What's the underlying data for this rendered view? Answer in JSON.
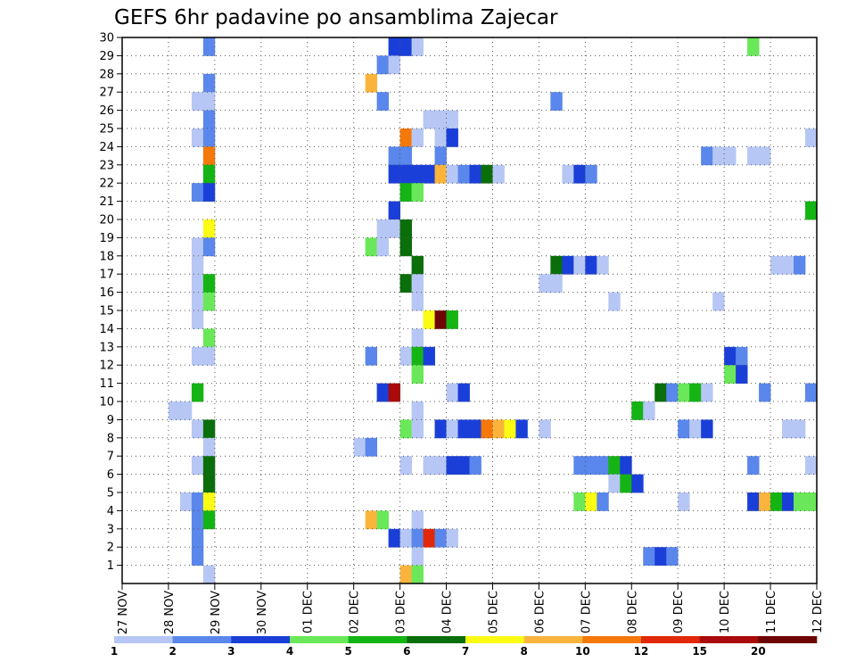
{
  "chart_data": {
    "type": "heatmap",
    "title": "GEFS 6hr padavine po ansamblima Zajecar",
    "xlabel": "",
    "ylabel": "",
    "x_tick_labels": [
      "27 NOV",
      "28 NOV",
      "29 NOV",
      "30 NOV",
      "01 DEC",
      "02 DEC",
      "03 DEC",
      "04 DEC",
      "05 DEC",
      "06 DEC",
      "07 DEC",
      "08 DEC",
      "09 DEC",
      "10 DEC",
      "11 DEC",
      "12 DEC"
    ],
    "x_unit": "6-hour step (4 steps per day)",
    "x_range": [
      0,
      60
    ],
    "y_tick_labels": [
      "1",
      "2",
      "3",
      "4",
      "5",
      "6",
      "7",
      "8",
      "9",
      "10",
      "11",
      "12",
      "13",
      "14",
      "15",
      "16",
      "17",
      "18",
      "19",
      "20",
      "21",
      "22",
      "23",
      "24",
      "25",
      "26",
      "27",
      "28",
      "29",
      "30"
    ],
    "y_range": [
      0,
      30
    ],
    "grid": true,
    "colorbar": {
      "labels": [
        "1",
        "2",
        "3",
        "4",
        "5",
        "6",
        "7",
        "8",
        "10",
        "12",
        "15",
        "20"
      ],
      "colors": [
        "#b7c7f5",
        "#5a87ec",
        "#1a3fd9",
        "#6ae85a",
        "#14b414",
        "#0a6e0a",
        "#fbfb14",
        "#fab43c",
        "#f5780a",
        "#e1280a",
        "#aa0a0a",
        "#6e0505"
      ]
    },
    "cells": [
      [
        7,
        30,
        2
      ],
      [
        23,
        30,
        3
      ],
      [
        24,
        30,
        3
      ],
      [
        25,
        30,
        1
      ],
      [
        54,
        30,
        4
      ],
      [
        22,
        29,
        2
      ],
      [
        23,
        29,
        1
      ],
      [
        7,
        28,
        2
      ],
      [
        21,
        28,
        8
      ],
      [
        6,
        27,
        1
      ],
      [
        7,
        27,
        1
      ],
      [
        22,
        27,
        2
      ],
      [
        37,
        27,
        2
      ],
      [
        7,
        26,
        2
      ],
      [
        26,
        26,
        1
      ],
      [
        27,
        26,
        1
      ],
      [
        28,
        26,
        1
      ],
      [
        6,
        25,
        1
      ],
      [
        7,
        25,
        2
      ],
      [
        24,
        25,
        9
      ],
      [
        25,
        25,
        1
      ],
      [
        27,
        25,
        1
      ],
      [
        28,
        25,
        3
      ],
      [
        59,
        25,
        1
      ],
      [
        7,
        24,
        9
      ],
      [
        23,
        24,
        2
      ],
      [
        24,
        24,
        2
      ],
      [
        27,
        24,
        2
      ],
      [
        50,
        24,
        2
      ],
      [
        51,
        24,
        1
      ],
      [
        52,
        24,
        1
      ],
      [
        54,
        24,
        1
      ],
      [
        55,
        24,
        1
      ],
      [
        7,
        23,
        5
      ],
      [
        23,
        23,
        3
      ],
      [
        24,
        23,
        3
      ],
      [
        25,
        23,
        3
      ],
      [
        26,
        23,
        3
      ],
      [
        27,
        23,
        8
      ],
      [
        28,
        23,
        1
      ],
      [
        29,
        23,
        2
      ],
      [
        30,
        23,
        3
      ],
      [
        31,
        23,
        6
      ],
      [
        32,
        23,
        1
      ],
      [
        38,
        23,
        1
      ],
      [
        39,
        23,
        3
      ],
      [
        40,
        23,
        2
      ],
      [
        6,
        22,
        2
      ],
      [
        7,
        22,
        3
      ],
      [
        24,
        22,
        5
      ],
      [
        25,
        22,
        4
      ],
      [
        23,
        21,
        3
      ],
      [
        59,
        21,
        5
      ],
      [
        7,
        20,
        7
      ],
      [
        22,
        20,
        1
      ],
      [
        23,
        20,
        1
      ],
      [
        24,
        20,
        6
      ],
      [
        6,
        19,
        1
      ],
      [
        7,
        19,
        2
      ],
      [
        21,
        19,
        4
      ],
      [
        22,
        19,
        1
      ],
      [
        24,
        19,
        6
      ],
      [
        6,
        18,
        1
      ],
      [
        25,
        18,
        6
      ],
      [
        37,
        18,
        6
      ],
      [
        38,
        18,
        3
      ],
      [
        39,
        18,
        1
      ],
      [
        40,
        18,
        3
      ],
      [
        41,
        18,
        1
      ],
      [
        56,
        18,
        1
      ],
      [
        57,
        18,
        1
      ],
      [
        58,
        18,
        2
      ],
      [
        6,
        17,
        1
      ],
      [
        7,
        17,
        5
      ],
      [
        24,
        17,
        6
      ],
      [
        25,
        17,
        1
      ],
      [
        36,
        17,
        1
      ],
      [
        37,
        17,
        1
      ],
      [
        6,
        16,
        1
      ],
      [
        7,
        16,
        4
      ],
      [
        25,
        16,
        1
      ],
      [
        42,
        16,
        1
      ],
      [
        51,
        16,
        1
      ],
      [
        6,
        15,
        1
      ],
      [
        26,
        15,
        7
      ],
      [
        27,
        15,
        12
      ],
      [
        28,
        15,
        5
      ],
      [
        7,
        14,
        4
      ],
      [
        25,
        14,
        1
      ],
      [
        6,
        13,
        1
      ],
      [
        7,
        13,
        1
      ],
      [
        21,
        13,
        2
      ],
      [
        24,
        13,
        1
      ],
      [
        25,
        13,
        5
      ],
      [
        26,
        13,
        3
      ],
      [
        52,
        13,
        3
      ],
      [
        53,
        13,
        2
      ],
      [
        25,
        12,
        4
      ],
      [
        52,
        12,
        4
      ],
      [
        53,
        12,
        3
      ],
      [
        6,
        11,
        5
      ],
      [
        22,
        11,
        3
      ],
      [
        23,
        11,
        11
      ],
      [
        28,
        11,
        1
      ],
      [
        29,
        11,
        3
      ],
      [
        46,
        11,
        6
      ],
      [
        47,
        11,
        2
      ],
      [
        48,
        11,
        4
      ],
      [
        49,
        11,
        5
      ],
      [
        50,
        11,
        1
      ],
      [
        55,
        11,
        2
      ],
      [
        59,
        11,
        2
      ],
      [
        4,
        10,
        1
      ],
      [
        5,
        10,
        1
      ],
      [
        25,
        10,
        1
      ],
      [
        44,
        10,
        5
      ],
      [
        45,
        10,
        1
      ],
      [
        6,
        9,
        1
      ],
      [
        7,
        9,
        6
      ],
      [
        24,
        9,
        4
      ],
      [
        25,
        9,
        1
      ],
      [
        27,
        9,
        3
      ],
      [
        28,
        9,
        1
      ],
      [
        29,
        9,
        3
      ],
      [
        30,
        9,
        3
      ],
      [
        31,
        9,
        9
      ],
      [
        32,
        9,
        8
      ],
      [
        33,
        9,
        7
      ],
      [
        34,
        9,
        3
      ],
      [
        36,
        9,
        1
      ],
      [
        48,
        9,
        2
      ],
      [
        49,
        9,
        1
      ],
      [
        50,
        9,
        3
      ],
      [
        57,
        9,
        1
      ],
      [
        58,
        9,
        1
      ],
      [
        7,
        8,
        1
      ],
      [
        20,
        8,
        1
      ],
      [
        21,
        8,
        2
      ],
      [
        6,
        7,
        1
      ],
      [
        7,
        7,
        6
      ],
      [
        24,
        7,
        1
      ],
      [
        26,
        7,
        1
      ],
      [
        27,
        7,
        1
      ],
      [
        28,
        7,
        3
      ],
      [
        29,
        7,
        3
      ],
      [
        30,
        7,
        2
      ],
      [
        39,
        7,
        2
      ],
      [
        40,
        7,
        2
      ],
      [
        41,
        7,
        2
      ],
      [
        42,
        7,
        5
      ],
      [
        43,
        7,
        3
      ],
      [
        54,
        7,
        2
      ],
      [
        59,
        7,
        1
      ],
      [
        7,
        6,
        6
      ],
      [
        42,
        6,
        1
      ],
      [
        43,
        6,
        5
      ],
      [
        44,
        6,
        3
      ],
      [
        5,
        5,
        1
      ],
      [
        6,
        5,
        2
      ],
      [
        7,
        5,
        7
      ],
      [
        39,
        5,
        4
      ],
      [
        40,
        5,
        7
      ],
      [
        41,
        5,
        2
      ],
      [
        48,
        5,
        1
      ],
      [
        54,
        5,
        3
      ],
      [
        55,
        5,
        8
      ],
      [
        56,
        5,
        5
      ],
      [
        57,
        5,
        3
      ],
      [
        58,
        5,
        4
      ],
      [
        59,
        5,
        4
      ],
      [
        6,
        4,
        2
      ],
      [
        7,
        4,
        5
      ],
      [
        21,
        4,
        8
      ],
      [
        22,
        4,
        4
      ],
      [
        25,
        4,
        1
      ],
      [
        6,
        3,
        2
      ],
      [
        23,
        3,
        3
      ],
      [
        24,
        3,
        1
      ],
      [
        25,
        3,
        2
      ],
      [
        26,
        3,
        10
      ],
      [
        27,
        3,
        2
      ],
      [
        28,
        3,
        1
      ],
      [
        6,
        2,
        2
      ],
      [
        25,
        2,
        1
      ],
      [
        45,
        2,
        2
      ],
      [
        46,
        2,
        3
      ],
      [
        47,
        2,
        2
      ],
      [
        7,
        1,
        1
      ],
      [
        24,
        1,
        8
      ],
      [
        25,
        1,
        4
      ]
    ]
  }
}
